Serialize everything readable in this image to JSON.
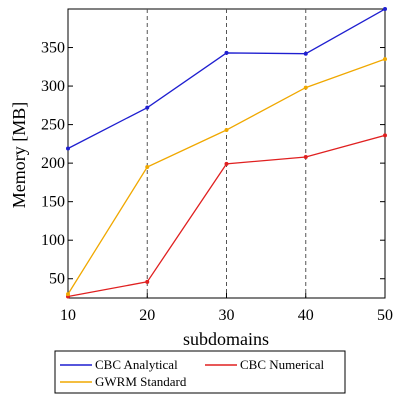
{
  "chart_data": {
    "type": "line",
    "xlabel": "subdomains",
    "ylabel": "Memory [MB]",
    "xlim": [
      10,
      50
    ],
    "ylim": [
      25,
      400
    ],
    "x": [
      10,
      20,
      30,
      40,
      50
    ],
    "xticks": [
      10,
      20,
      30,
      40,
      50
    ],
    "yticks": [
      50,
      100,
      150,
      200,
      250,
      300,
      350
    ],
    "grid": "vertical dashed",
    "legend_position": "bottom",
    "series": [
      {
        "name": "CBC Analytical",
        "color": "#1f1fd0",
        "values": [
          219,
          272,
          343,
          342,
          400
        ]
      },
      {
        "name": "CBC Numerical",
        "color": "#e02020",
        "values": [
          27,
          46,
          199,
          208,
          236
        ]
      },
      {
        "name": "GWRM Standard",
        "color": "#f0a800",
        "values": [
          30,
          195,
          243,
          298,
          335
        ]
      }
    ]
  }
}
